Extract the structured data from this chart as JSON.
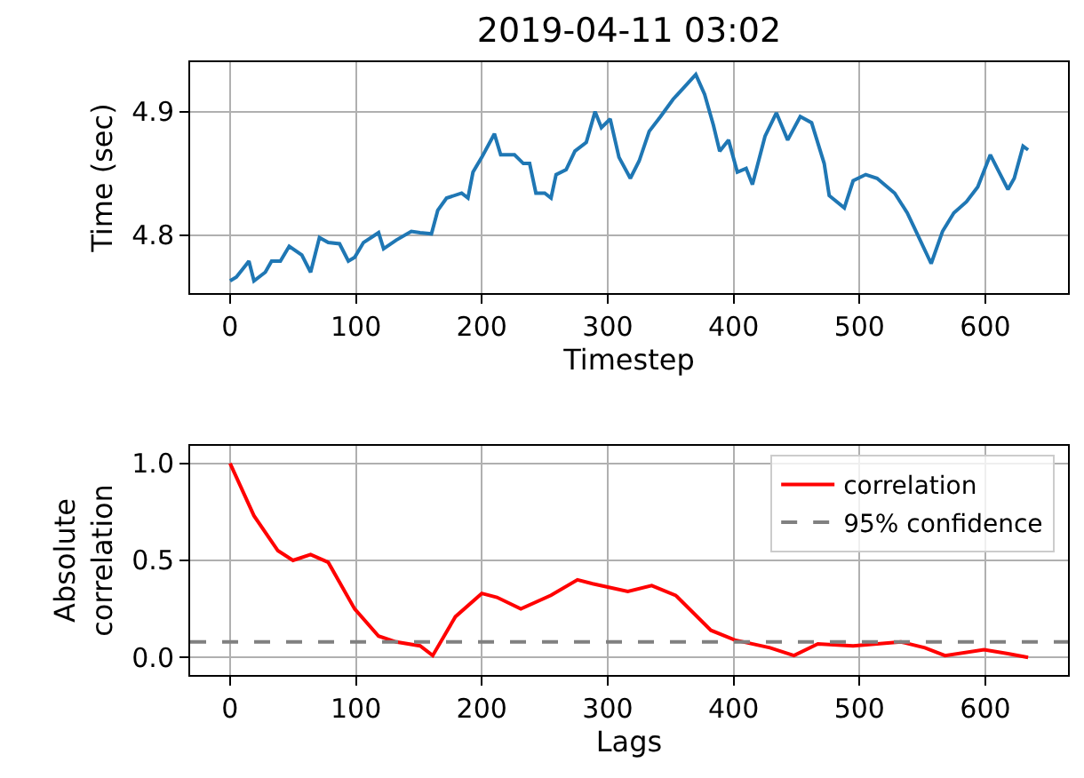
{
  "chart_data": [
    {
      "type": "line",
      "title": "2019-04-11 03:02",
      "xlabel": "Timestep",
      "ylabel": "Time (sec)",
      "grid": true,
      "legend": false,
      "xlim": [
        -31.7,
        665.7
      ],
      "xticks": [
        0,
        100,
        200,
        300,
        400,
        500,
        600
      ],
      "ylim": [
        4.753,
        4.94
      ],
      "yticks": [
        4.8,
        4.9
      ],
      "series": [
        {
          "color": "#1f77b4",
          "x": [
            0,
            5,
            12,
            15,
            19,
            28,
            33,
            40,
            47,
            57,
            64,
            71,
            78,
            87,
            94,
            99,
            106,
            118,
            122,
            132,
            144,
            151,
            160,
            165,
            172,
            184,
            189,
            193,
            200,
            210,
            215,
            226,
            233,
            238,
            243,
            250,
            255,
            259,
            267,
            274,
            283,
            290,
            295,
            302,
            309,
            318,
            325,
            333,
            342,
            352,
            361,
            370,
            377,
            384,
            389,
            396,
            403,
            410,
            415,
            425,
            434,
            443,
            453,
            462,
            472,
            476,
            488,
            495,
            505,
            514,
            528,
            538,
            545,
            557,
            566,
            575,
            585,
            594,
            604,
            611,
            618,
            623,
            630,
            634
          ],
          "values": [
            4.763,
            4.766,
            4.775,
            4.779,
            4.763,
            4.77,
            4.779,
            4.779,
            4.791,
            4.784,
            4.77,
            4.798,
            4.794,
            4.793,
            4.779,
            4.782,
            4.794,
            4.802,
            4.789,
            4.796,
            4.803,
            4.802,
            4.801,
            4.82,
            4.83,
            4.834,
            4.83,
            4.851,
            4.863,
            4.882,
            4.865,
            4.865,
            4.858,
            4.858,
            4.834,
            4.834,
            4.83,
            4.849,
            4.853,
            4.868,
            4.875,
            4.9,
            4.887,
            4.894,
            4.863,
            4.846,
            4.86,
            4.884,
            4.896,
            4.91,
            4.92,
            4.93,
            4.914,
            4.889,
            4.868,
            4.877,
            4.851,
            4.854,
            4.841,
            4.88,
            4.899,
            4.877,
            4.896,
            4.891,
            4.858,
            4.832,
            4.822,
            4.844,
            4.849,
            4.846,
            4.834,
            4.818,
            4.803,
            4.777,
            4.803,
            4.818,
            4.827,
            4.839,
            4.865,
            4.851,
            4.837,
            4.846,
            4.872,
            4.869
          ]
        }
      ]
    },
    {
      "type": "line",
      "xlabel": "Lags",
      "ylabel": "Absolute\ncorrelation",
      "grid": true,
      "legend": "top right",
      "xlim": [
        -31.7,
        665.7
      ],
      "xticks": [
        0,
        100,
        200,
        300,
        400,
        500,
        600
      ],
      "ylim": [
        -0.09,
        1.09
      ],
      "yticks": [
        {
          "value": 0,
          "label": "0.0"
        },
        0.5,
        {
          "value": 1,
          "label": "1.0"
        }
      ],
      "series": [
        {
          "name": "correlation",
          "color": "#ff0000",
          "x": [
            0,
            19,
            38,
            50,
            64,
            78,
            99,
            118,
            132,
            151,
            161,
            179,
            200,
            212,
            231,
            255,
            276,
            288,
            316,
            335,
            354,
            382,
            401,
            429,
            448,
            467,
            495,
            533,
            552,
            568,
            599,
            618,
            634
          ],
          "values": [
            1.0,
            0.73,
            0.55,
            0.5,
            0.53,
            0.49,
            0.25,
            0.11,
            0.08,
            0.06,
            0.01,
            0.21,
            0.33,
            0.31,
            0.25,
            0.32,
            0.4,
            0.38,
            0.34,
            0.37,
            0.32,
            0.14,
            0.09,
            0.05,
            0.01,
            0.07,
            0.06,
            0.08,
            0.05,
            0.01,
            0.04,
            0.02,
            0.0
          ]
        }
      ],
      "ref_lines": [
        {
          "axis": "y",
          "value": 0.08,
          "label": "95% confidence",
          "color": "#808080",
          "line_style": "dashed"
        }
      ]
    }
  ]
}
